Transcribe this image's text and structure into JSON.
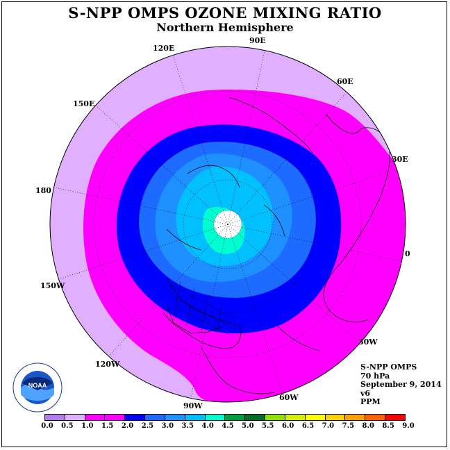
{
  "header": {
    "title": "S-NPP OMPS OZONE MIXING RATIO",
    "subtitle": "Northern Hemisphere"
  },
  "longitude_labels": [
    {
      "label": "90E"
    },
    {
      "label": "60E"
    },
    {
      "label": "30E"
    },
    {
      "label": "0"
    },
    {
      "label": "30W"
    },
    {
      "label": "60W"
    },
    {
      "label": "90W"
    },
    {
      "label": "120W"
    },
    {
      "label": "150W"
    },
    {
      "label": "180"
    },
    {
      "label": "150E"
    },
    {
      "label": "120E"
    }
  ],
  "info": {
    "instrument": "S-NPP OMPS",
    "pressure": "70 hPa",
    "date": "September 9, 2014",
    "version": "v6",
    "units": "PPM"
  },
  "logo": {
    "text": "NOAA",
    "icon": "noaa-logo-icon"
  },
  "colorbar": {
    "ticks": [
      "0.0",
      "0.5",
      "1.0",
      "1.5",
      "2.0",
      "2.5",
      "3.0",
      "3.5",
      "4.0",
      "4.5",
      "5.0",
      "5.5",
      "6.0",
      "6.5",
      "7.0",
      "7.5",
      "8.0",
      "8.5",
      "9.0"
    ],
    "colors": [
      "#b57cf0",
      "#e0b0ff",
      "#ff00ff",
      "#ff00ff",
      "#0000ff",
      "#1e6cff",
      "#1e90ff",
      "#00c0ff",
      "#00ffd0",
      "#00a040",
      "#007028",
      "#90e000",
      "#d8f000",
      "#ffff00",
      "#ffd000",
      "#ffa000",
      "#ff6000",
      "#ff0000",
      "#8b5a2b"
    ]
  },
  "map": {
    "contour_levels_ppm": [
      0.5,
      1.0,
      1.5,
      2.0,
      2.5,
      3.0,
      3.5
    ],
    "fill_colors": {
      "0.5-1.0": "#e0b0ff",
      "1.0-1.5": "#ff00ff",
      "1.5-2.0": "#0000ff",
      "2.0-2.5": "#1e6cff",
      "2.5-3.0": "#1e90ff",
      "3.0-3.5": "#00c0ff",
      "3.5-4.0": "#00ffd0",
      "no-data": "#ffffff"
    }
  }
}
